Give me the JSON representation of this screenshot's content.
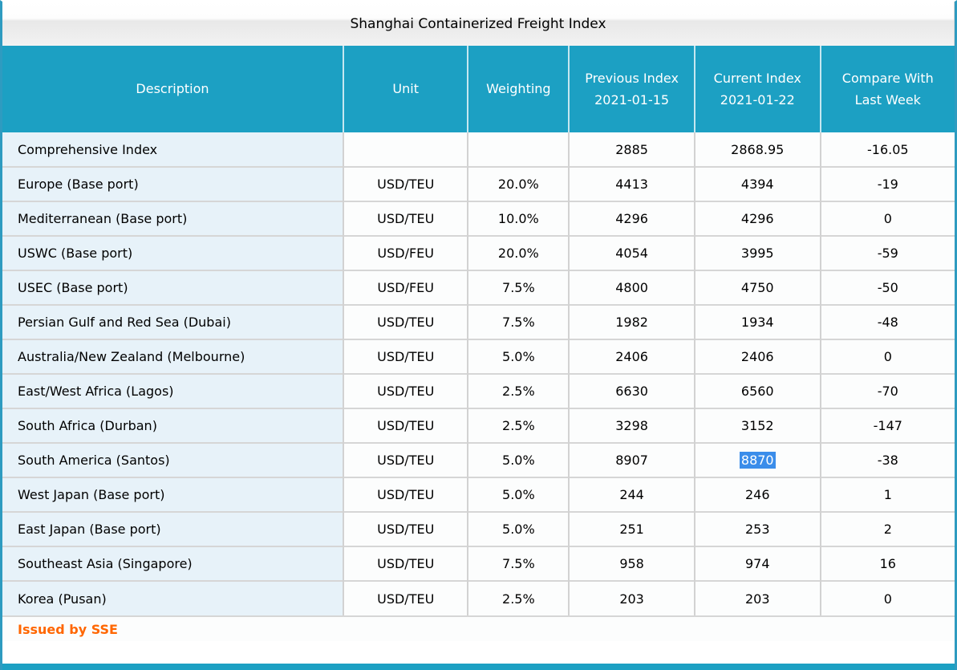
{
  "window": {
    "title": "Shanghai Containerized Freight Index"
  },
  "theme": {
    "header_bg": "#1CA0C3",
    "edge_border": "#2E9BC0",
    "description_cell_bg": "#E7F2F9",
    "cell_bg": "#FCFDFD",
    "selection_bg": "#3B8DEA",
    "selection_text": "#FFFFFF",
    "footer_text_color": "#FF6600"
  },
  "table": {
    "columns": [
      {
        "key": "description",
        "label": "Description"
      },
      {
        "key": "unit",
        "label": "Unit"
      },
      {
        "key": "weighting",
        "label": "Weighting"
      },
      {
        "key": "previous",
        "label": "Previous Index\n2021-01-15"
      },
      {
        "key": "current",
        "label": "Current Index\n2021-01-22"
      },
      {
        "key": "compare",
        "label": "Compare With\nLast Week"
      }
    ],
    "rows": [
      {
        "description": "Comprehensive Index",
        "unit": "",
        "weighting": "",
        "previous": "2885",
        "current": "2868.95",
        "compare": "-16.05"
      },
      {
        "description": "Europe (Base port)",
        "unit": "USD/TEU",
        "weighting": "20.0%",
        "previous": "4413",
        "current": "4394",
        "compare": "-19"
      },
      {
        "description": "Mediterranean (Base port)",
        "unit": "USD/TEU",
        "weighting": "10.0%",
        "previous": "4296",
        "current": "4296",
        "compare": "0"
      },
      {
        "description": "USWC (Base port)",
        "unit": "USD/FEU",
        "weighting": "20.0%",
        "previous": "4054",
        "current": "3995",
        "compare": "-59"
      },
      {
        "description": "USEC (Base port)",
        "unit": "USD/FEU",
        "weighting": "7.5%",
        "previous": "4800",
        "current": "4750",
        "compare": "-50"
      },
      {
        "description": "Persian Gulf and Red Sea (Dubai)",
        "unit": "USD/TEU",
        "weighting": "7.5%",
        "previous": "1982",
        "current": "1934",
        "compare": "-48"
      },
      {
        "description": "Australia/New Zealand (Melbourne)",
        "unit": "USD/TEU",
        "weighting": "5.0%",
        "previous": "2406",
        "current": "2406",
        "compare": "0"
      },
      {
        "description": "East/West Africa (Lagos)",
        "unit": "USD/TEU",
        "weighting": "2.5%",
        "previous": "6630",
        "current": "6560",
        "compare": "-70"
      },
      {
        "description": "South Africa (Durban)",
        "unit": "USD/TEU",
        "weighting": "2.5%",
        "previous": "3298",
        "current": "3152",
        "compare": "-147"
      },
      {
        "description": "South America (Santos)",
        "unit": "USD/TEU",
        "weighting": "5.0%",
        "previous": "8907",
        "current": "8870",
        "compare": "-38"
      },
      {
        "description": "West Japan (Base port)",
        "unit": "USD/TEU",
        "weighting": "5.0%",
        "previous": "244",
        "current": "246",
        "compare": "1"
      },
      {
        "description": "East Japan (Base port)",
        "unit": "USD/TEU",
        "weighting": "5.0%",
        "previous": "251",
        "current": "253",
        "compare": "2"
      },
      {
        "description": "Southeast Asia (Singapore)",
        "unit": "USD/TEU",
        "weighting": "7.5%",
        "previous": "958",
        "current": "974",
        "compare": "16"
      },
      {
        "description": "Korea (Pusan)",
        "unit": "USD/TEU",
        "weighting": "2.5%",
        "previous": "203",
        "current": "203",
        "compare": "0"
      }
    ],
    "selection": {
      "row": 9,
      "column": "current",
      "value": "8870"
    }
  },
  "footer": {
    "label": "Issued by SSE"
  }
}
